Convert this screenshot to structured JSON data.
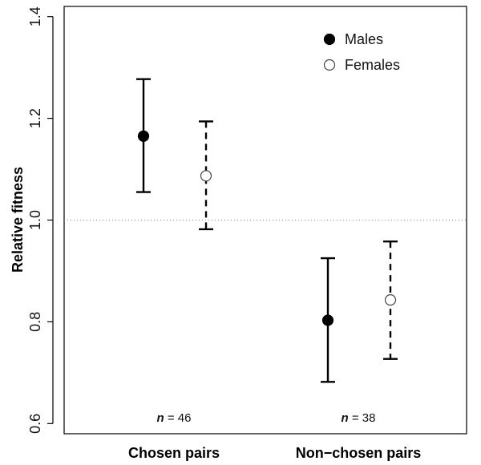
{
  "chart_data": {
    "type": "scatter",
    "title": "",
    "xlabel": "",
    "ylabel": "Relative fitness",
    "ylim": [
      0.58,
      1.42
    ],
    "yticks": [
      0.6,
      0.8,
      1.0,
      1.2,
      1.4
    ],
    "ytick_labels": [
      "0.6",
      "0.8",
      "1.0",
      "1.2",
      "1.4"
    ],
    "categories": [
      "Chosen pairs",
      "Non−chosen pairs"
    ],
    "reference_line": {
      "y": 1.0,
      "style": "dotted"
    },
    "series": [
      {
        "name": "Males",
        "marker": "filled-circle",
        "errorbar_style": "solid",
        "values": [
          1.165,
          0.803
        ],
        "lower": [
          1.055,
          0.682
        ],
        "upper": [
          1.277,
          0.925
        ]
      },
      {
        "name": "Females",
        "marker": "open-circle",
        "errorbar_style": "dashed",
        "values": [
          1.087,
          0.843
        ],
        "lower": [
          0.982,
          0.727
        ],
        "upper": [
          1.194,
          0.958
        ]
      }
    ],
    "annotations": [
      {
        "category": "Chosen pairs",
        "n_symbol": "n",
        "n_text": " = 46"
      },
      {
        "category": "Non−chosen pairs",
        "n_symbol": "n",
        "n_text": " = 38"
      }
    ],
    "legend": {
      "position": "top-right"
    },
    "grid": false
  }
}
